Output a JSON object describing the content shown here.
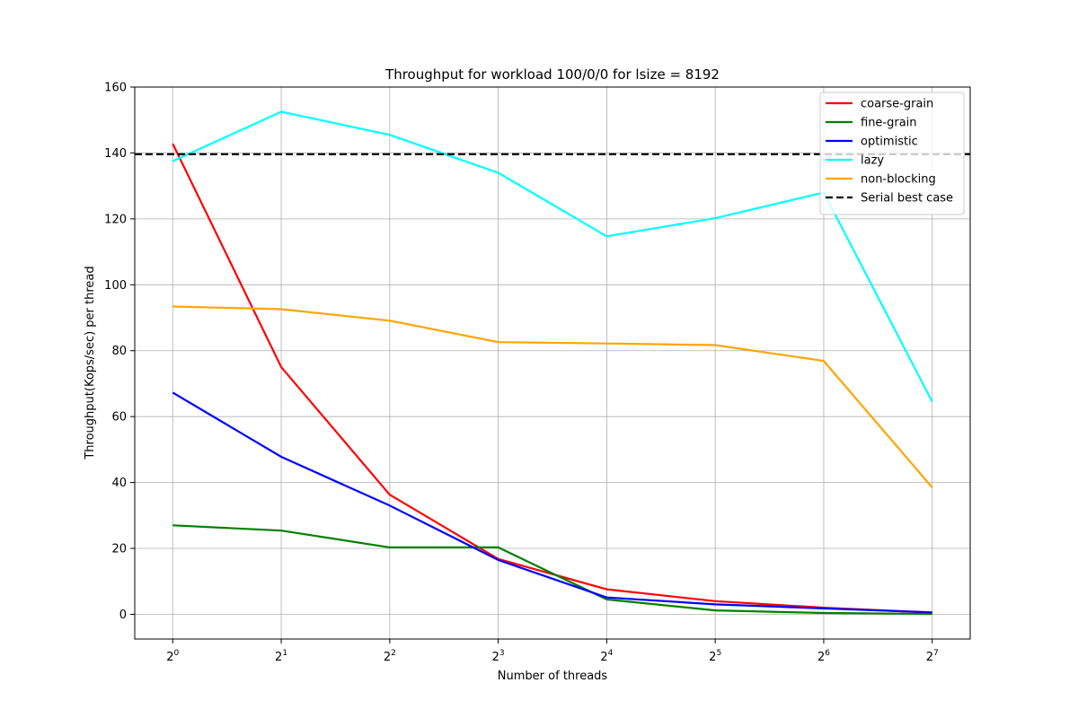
{
  "chart_data": {
    "type": "line",
    "title": "Throughput for workload 100/0/0 for lsize = 8192",
    "xlabel": "Number of threads",
    "ylabel": "Throughput(Kops/sec) per thread",
    "x": [
      1,
      2,
      4,
      8,
      16,
      32,
      64,
      128
    ],
    "xscale": "log2",
    "xticks": [
      {
        "base": "2",
        "exp": "0"
      },
      {
        "base": "2",
        "exp": "1"
      },
      {
        "base": "2",
        "exp": "2"
      },
      {
        "base": "2",
        "exp": "3"
      },
      {
        "base": "2",
        "exp": "4"
      },
      {
        "base": "2",
        "exp": "5"
      },
      {
        "base": "2",
        "exp": "6"
      },
      {
        "base": "2",
        "exp": "7"
      }
    ],
    "ylim": [
      -7.5,
      160
    ],
    "yticks": [
      "0",
      "20",
      "40",
      "60",
      "80",
      "100",
      "120",
      "140",
      "160"
    ],
    "grid": true,
    "legend_position": "top-right",
    "series": [
      {
        "name": "coarse-grain",
        "color": "#ff0000",
        "style": "solid",
        "values": [
          142.8,
          75.0,
          36.3,
          16.8,
          7.6,
          4.0,
          2.0,
          0.5
        ]
      },
      {
        "name": "fine-grain",
        "color": "#008000",
        "style": "solid",
        "values": [
          27.0,
          25.4,
          20.3,
          20.3,
          4.5,
          1.2,
          0.4,
          0.1
        ]
      },
      {
        "name": "optimistic",
        "color": "#0000ff",
        "style": "solid",
        "values": [
          67.3,
          47.8,
          33.0,
          16.5,
          5.1,
          3.0,
          1.8,
          0.6
        ]
      },
      {
        "name": "lazy",
        "color": "#00ffff",
        "style": "solid",
        "values": [
          137.5,
          152.5,
          145.5,
          134.0,
          114.7,
          120.2,
          128.0,
          64.5
        ]
      },
      {
        "name": "non-blocking",
        "color": "#ffa500",
        "style": "solid",
        "values": [
          93.4,
          92.6,
          89.1,
          82.6,
          82.2,
          81.7,
          76.9,
          38.5
        ]
      },
      {
        "name": "Serial best case",
        "color": "#000000",
        "style": "dashed",
        "constant": 139.6
      }
    ]
  }
}
